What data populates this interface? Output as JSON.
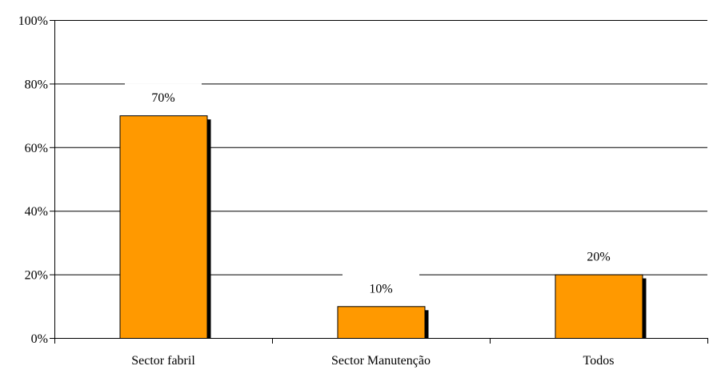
{
  "chart_data": {
    "type": "bar",
    "title": "",
    "xlabel": "",
    "ylabel": "",
    "categories": [
      "Sector fabril",
      "Sector Manutenção",
      "Todos"
    ],
    "values": [
      70,
      10,
      20
    ],
    "data_labels": [
      "70%",
      "10%",
      "20%"
    ],
    "ylim": [
      0,
      100
    ],
    "yticks": [
      0,
      20,
      40,
      60,
      80,
      100
    ],
    "ytick_labels": [
      "0%",
      "20%",
      "40%",
      "60%",
      "80%",
      "100%"
    ],
    "grid": true,
    "legend": "none",
    "colors": {
      "bar": "#FF9900",
      "bar_shadow": "#000000",
      "grid": "#000000",
      "background": "#FFFFFF"
    }
  }
}
